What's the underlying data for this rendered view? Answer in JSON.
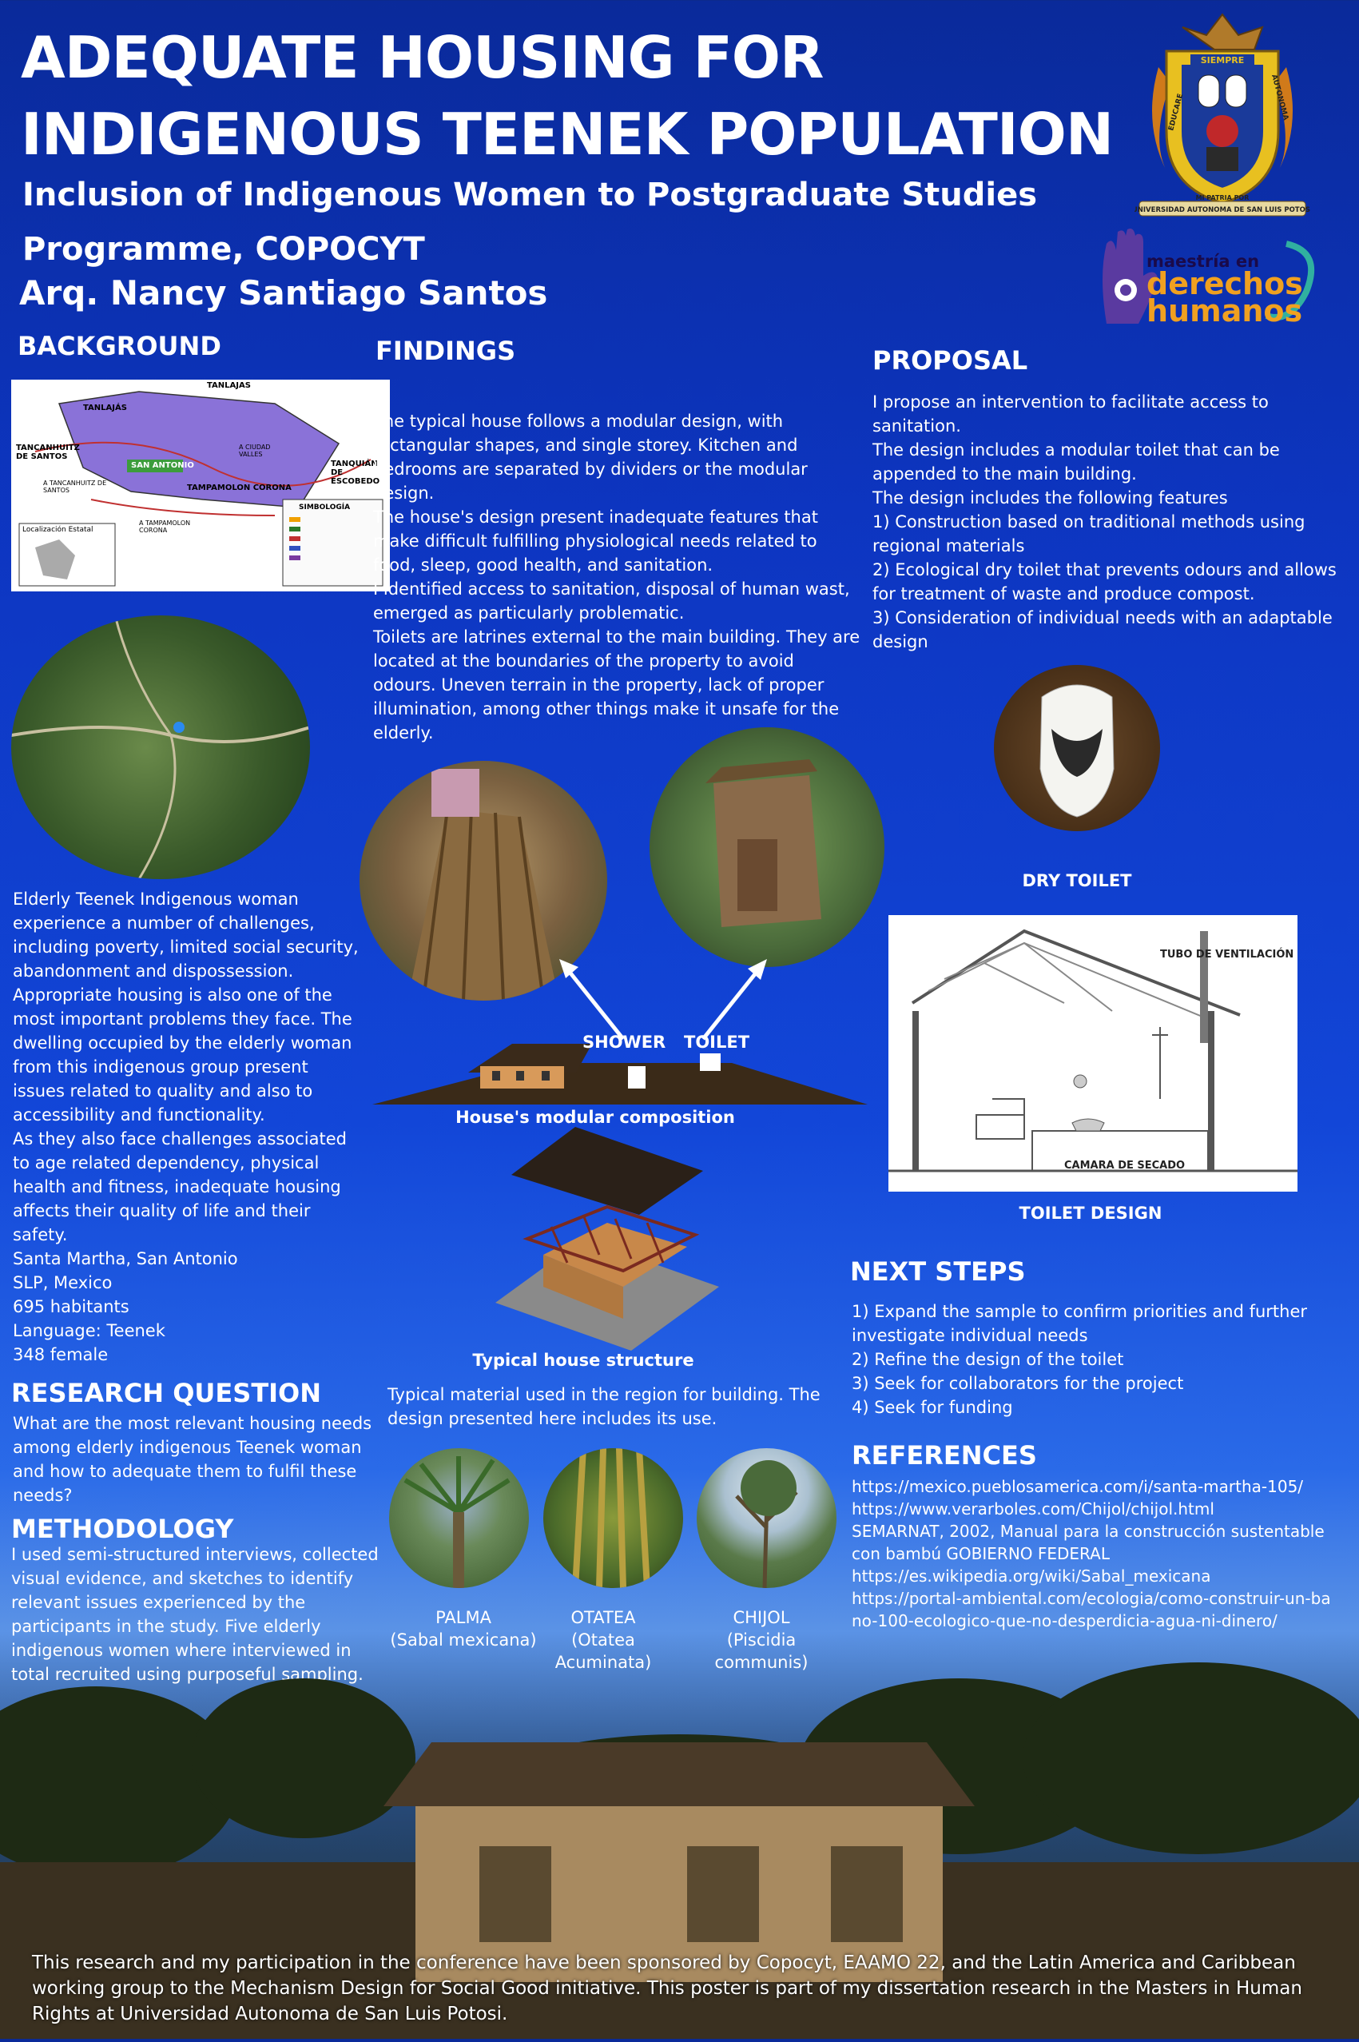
{
  "header": {
    "title_line1": "ADEQUATE HOUSING FOR",
    "title_line2": "INDIGENOUS TEENEK POPULATION",
    "subtitle_line1": "Inclusion of Indigenous Women to Postgraduate Studies",
    "subtitle_line2": "Programme, COPOCYT",
    "author": "Arq. Nancy Santiago Santos"
  },
  "logos": {
    "university_seal": {
      "top_word": "SIEMPRE",
      "inner_left": "EDUCARE",
      "inner_right": "AUTONOMA",
      "inner_bottom": "MI PATRIA POR",
      "ribbon": "UNIVERSIDAD AUTONOMA DE SAN LUIS POTOSI"
    },
    "program": {
      "line1": "maestría en",
      "line2": "derechos",
      "line3": "humanos"
    }
  },
  "background": {
    "heading": "BACKGROUND",
    "map": {
      "places": [
        "TANLAJAS",
        "TANLAJÁS",
        "TANCANHUITZ DE SANTOS",
        "SAN ANTONIO",
        "TANQUIÁN DE ESCOBEDO",
        "TAMPAMOLON CORONA",
        "A TANCANHUITZ DE SANTOS",
        "A TAMPAMOLON CORONA",
        "A CIUDAD VALLES"
      ],
      "inset_label": "Localización Estatal",
      "legend_title": "SIMBOLOGÍA"
    },
    "paragraphs": [
      "Elderly Teenek Indigenous woman experience a number of challenges, including poverty, limited social security, abandonment and dispossession.",
      "Appropriate housing is also one of the most important problems they face. The dwelling occupied by the elderly woman from this indigenous group present issues related to quality and also to accessibility and functionality.",
      "As they also face challenges associated to age related dependency, physical health and fitness, inadequate housing affects their quality of life and their safety."
    ],
    "facts": [
      "Santa Martha, San Antonio",
      "SLP, Mexico",
      "695 habitants",
      "Language: Teenek",
      "348 female"
    ]
  },
  "research_question": {
    "heading": "RESEARCH QUESTION",
    "text": "What are the most relevant housing needs among elderly indigenous Teenek woman and how to adequate them to fulfil these needs?"
  },
  "methodology": {
    "heading": "METHODOLOGY",
    "text": "I used semi-structured interviews, collected visual evidence, and sketches to identify relevant issues experienced by the participants in the study. Five elderly indigenous women where interviewed in total recruited using purposeful sampling."
  },
  "findings": {
    "heading": "FINDINGS",
    "paragraphs": [
      "The typical house follows a modular design, with rectangular shapes, and single storey. Kitchen and bedrooms are separated by dividers or the modular design.",
      "The house's design present inadequate features that make difficult fulfilling  physiological needs related to food, sleep, good health, and sanitation.",
      "I identified access to sanitation, disposal of human wast, emerged as particularly problematic.",
      "Toilets are latrines external to the main building. They are located at the boundaries of the property to avoid odours. Uneven terrain in the property, lack of proper illumination, among other things make it unsafe for the elderly."
    ],
    "shower_label": "SHOWER",
    "toilet_label": "TOILET",
    "modular_caption": "House's modular composition",
    "structure_caption": "Typical house structure",
    "materials_intro": "Typical material used in the region for building. The design presented here includes its use.",
    "materials": [
      {
        "name": "PALMA",
        "sci": "(Sabal mexicana)"
      },
      {
        "name": "OTATEA",
        "sci": "(Otatea",
        "sci2": "Acuminata)"
      },
      {
        "name": "CHIJOL",
        "sci": "(Piscidia",
        "sci2": "communis)"
      }
    ]
  },
  "proposal": {
    "heading": "PROPOSAL",
    "lines": [
      "I propose an intervention to facilitate access to sanitation.",
      "The design includes a modular toilet that can be appended to the main building.",
      "The design includes the following features",
      "1) Construction based on traditional methods using regional materials",
      "2) Ecological dry toilet that prevents odours and allows for treatment of waste and produce compost.",
      "3) Consideration of individual needs with an adaptable design"
    ],
    "dry_toilet_caption": "DRY TOILET",
    "toilet_design_caption": "TOILET DESIGN",
    "drawing_label_top": "TUBO DE VENTILACIÓN",
    "drawing_label_bottom": "CAMARA DE SECADO"
  },
  "next_steps": {
    "heading": "NEXT STEPS",
    "items": [
      "1) Expand the sample to confirm priorities and further investigate individual needs",
      "2) Refine the design of the toilet",
      "3) Seek for collaborators for the project",
      "4) Seek for funding"
    ]
  },
  "references": {
    "heading": "REFERENCES",
    "items": [
      "https://mexico.pueblosamerica.com/i/santa-martha-105/",
      "https://www.verarboles.com/Chijol/chijol.html",
      "SEMARNAT, 2002, Manual para la construcción sustentable con bambú GOBIERNO FEDERAL",
      "https://es.wikipedia.org/wiki/Sabal_mexicana",
      "https://portal-ambiental.com/ecologia/como-construir-un-bano-100-ecologico-que-no-desperdicia-agua-ni-dinero/"
    ]
  },
  "footer": {
    "text": "This research and my participation in the conference have been sponsored by Copocyt, EAAMO 22, and the Latin America and Caribbean working group to the Mechanism Design for Social Good initiative. This poster is part of my dissertation research in the Masters in Human Rights at Universidad Autonoma de San Luis Potosi."
  }
}
